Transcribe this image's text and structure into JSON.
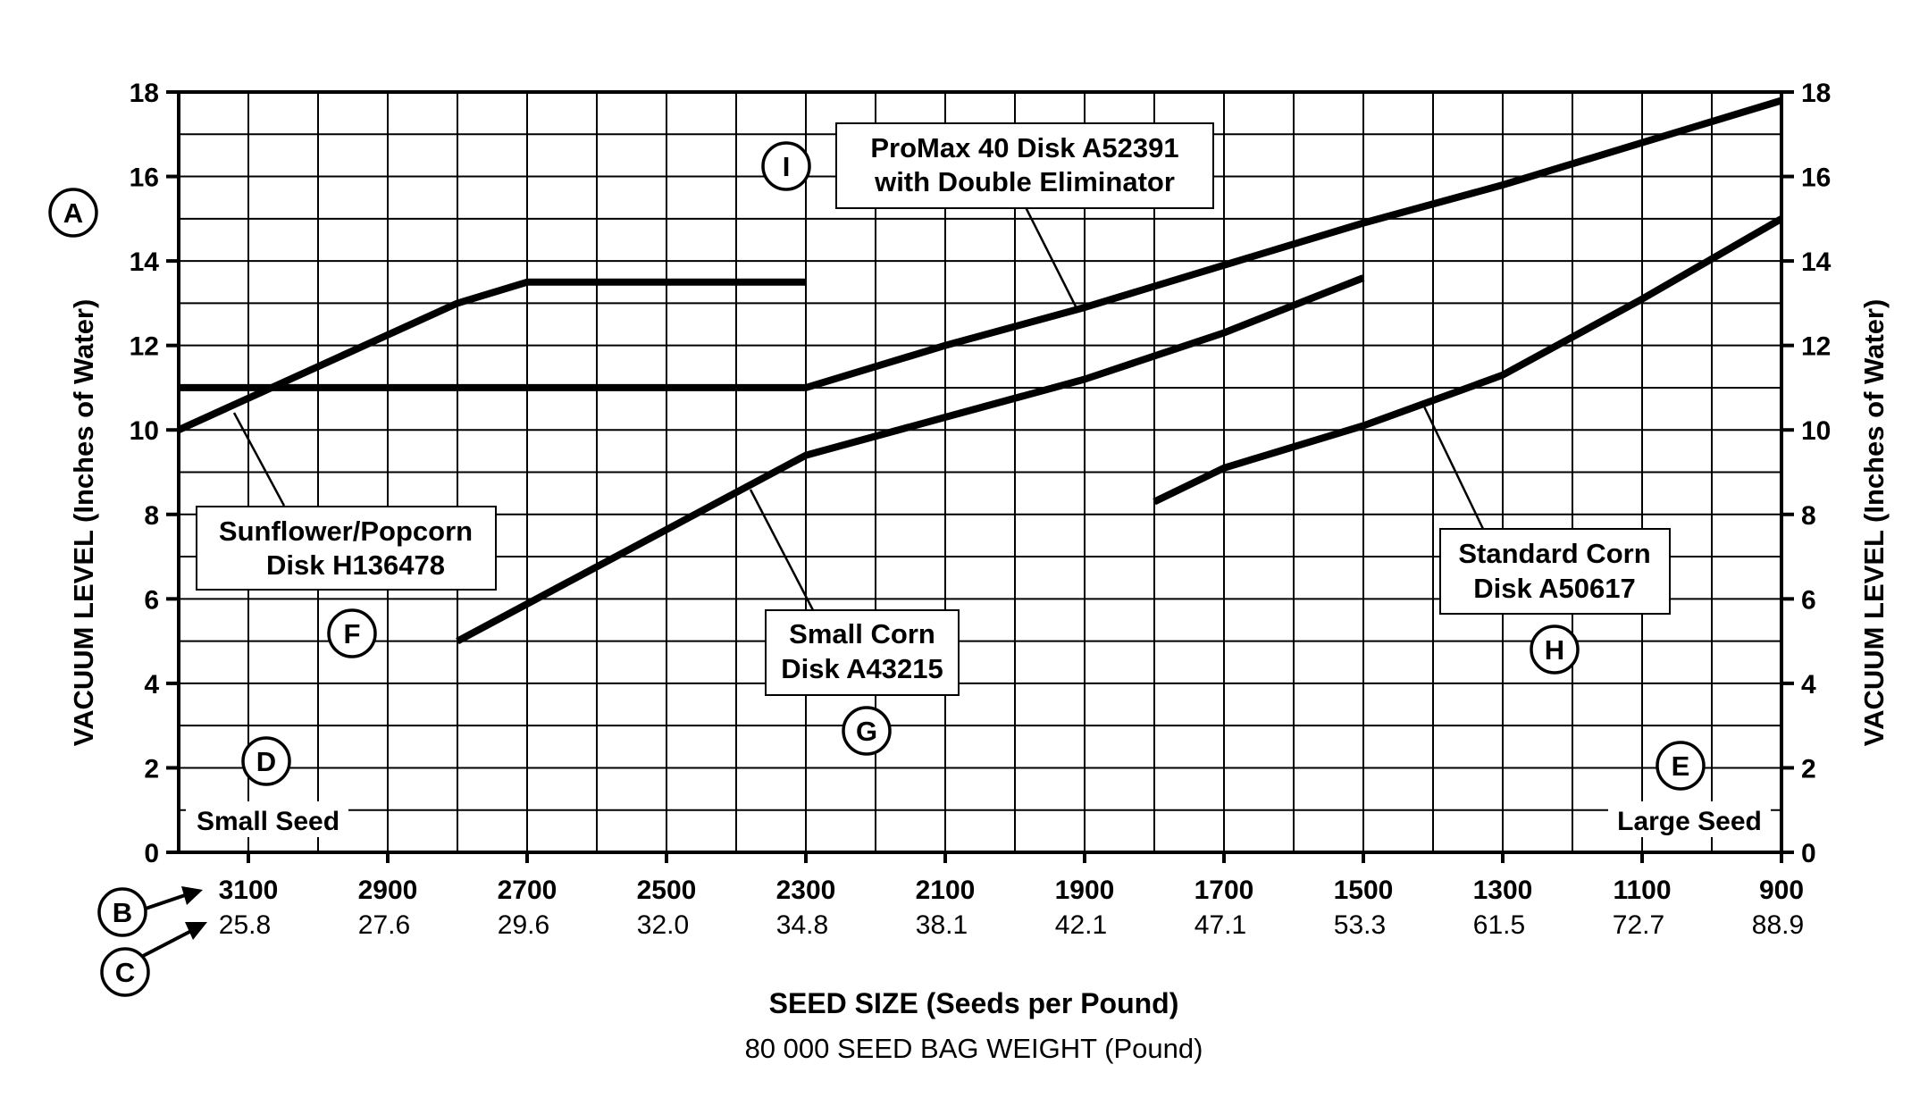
{
  "chart_data": {
    "type": "line",
    "title": "",
    "ylabel_left": "VACUUM LEVEL (Inches of Water)",
    "ylabel_right": "VACUUM LEVEL (Inches of Water)",
    "xlabel": "SEED SIZE (Seeds per Pound)",
    "xlabel_secondary": "80 000 SEED BAG WEIGHT (Pound)",
    "x_axis_reversed": true,
    "xlim": [
      3200,
      900
    ],
    "ylim": [
      0,
      18
    ],
    "grid": true,
    "y_ticks": [
      "0",
      "2",
      "4",
      "6",
      "8",
      "10",
      "12",
      "14",
      "16",
      "18"
    ],
    "x_ticks": [
      {
        "seeds": "3100",
        "weight": "25.8"
      },
      {
        "seeds": "2900",
        "weight": "27.6"
      },
      {
        "seeds": "2700",
        "weight": "29.6"
      },
      {
        "seeds": "2500",
        "weight": "32.0"
      },
      {
        "seeds": "2300",
        "weight": "34.8"
      },
      {
        "seeds": "2100",
        "weight": "38.1"
      },
      {
        "seeds": "1900",
        "weight": "42.1"
      },
      {
        "seeds": "1700",
        "weight": "47.1"
      },
      {
        "seeds": "1500",
        "weight": "53.3"
      },
      {
        "seeds": "1300",
        "weight": "61.5"
      },
      {
        "seeds": "1100",
        "weight": "72.7"
      },
      {
        "seeds": "900",
        "weight": "88.9"
      }
    ],
    "series": [
      {
        "name": "Sunflower/Popcorn Disk H136478",
        "callout": "F",
        "points": [
          [
            3200,
            10
          ],
          [
            2800,
            13
          ],
          [
            2700,
            13.5
          ],
          [
            2300,
            13.5
          ]
        ]
      },
      {
        "name": "ProMax 40 Disk A52391 with Double Eliminator",
        "callout": "I",
        "points": [
          [
            3200,
            11
          ],
          [
            2300,
            11
          ],
          [
            2100,
            12
          ],
          [
            1900,
            12.9
          ],
          [
            1700,
            13.9
          ],
          [
            1500,
            14.9
          ],
          [
            1300,
            15.8
          ],
          [
            1100,
            16.8
          ],
          [
            900,
            17.8
          ]
        ]
      },
      {
        "name": "Small Corn Disk A43215",
        "callout": "G",
        "points": [
          [
            2800,
            5
          ],
          [
            2300,
            9.4
          ],
          [
            2100,
            10.3
          ],
          [
            1900,
            11.2
          ],
          [
            1700,
            12.3
          ],
          [
            1500,
            13.6
          ]
        ]
      },
      {
        "name": "Standard Corn Disk A50617",
        "callout": "H",
        "points": [
          [
            1800,
            8.3
          ],
          [
            1700,
            9.1
          ],
          [
            1500,
            10.1
          ],
          [
            1300,
            11.3
          ],
          [
            1100,
            13.1
          ],
          [
            900,
            15
          ]
        ]
      }
    ],
    "annotations": {
      "series_labels": [
        {
          "lines": [
            "Sunflower/Popcorn",
            "Disk H136478"
          ]
        },
        {
          "lines": [
            "ProMax 40 Disk A52391",
            "with Double Eliminator"
          ]
        },
        {
          "lines": [
            "Small Corn",
            "Disk A43215"
          ]
        },
        {
          "lines": [
            "Standard Corn",
            "Disk A50617"
          ]
        }
      ],
      "small_seed": "Small Seed",
      "large_seed": "Large Seed",
      "callouts": {
        "A": "A",
        "B": "B",
        "C": "C",
        "D": "D",
        "E": "E",
        "F": "F",
        "G": "G",
        "H": "H",
        "I": "I"
      }
    }
  }
}
